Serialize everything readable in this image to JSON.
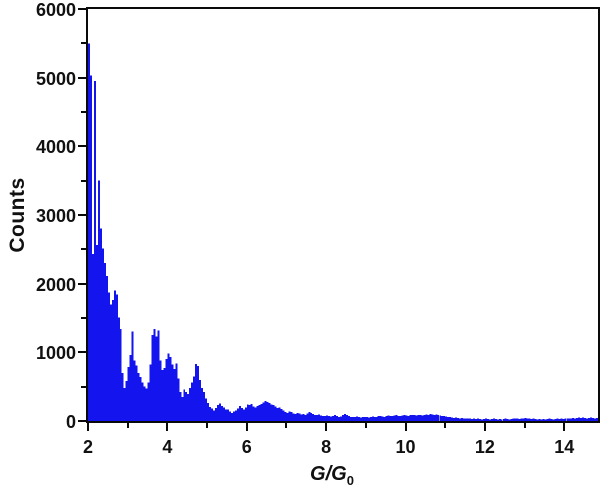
{
  "figure": {
    "background_color": "#ffffff",
    "bar_color": "#1414ee",
    "axis_color": "#0a0a0a",
    "text_color": "#111111"
  },
  "chart_data": {
    "type": "bar",
    "subtype": "histogram",
    "title": "",
    "xlabel": "G/G0",
    "xlabel_main": "G/G",
    "xlabel_sub": "0",
    "ylabel": "Counts",
    "xlim": [
      2,
      14.85
    ],
    "ylim": [
      0,
      6000
    ],
    "grid": false,
    "legend_position": "none",
    "x_major_ticks": [
      2,
      4,
      6,
      8,
      10,
      12,
      14
    ],
    "x_major_tick_labels": [
      "2",
      "4",
      "6",
      "8",
      "10",
      "12",
      "14"
    ],
    "x_minor_ticks": [
      3,
      5,
      7,
      9,
      11,
      13
    ],
    "y_major_ticks": [
      0,
      1000,
      2000,
      3000,
      4000,
      5000,
      6000
    ],
    "y_major_tick_labels": [
      "0",
      "1000",
      "2000",
      "3000",
      "4000",
      "5000",
      "6000"
    ],
    "y_minor_ticks": [
      500,
      1500,
      2500,
      3500,
      4500,
      5500
    ],
    "bin_start": 2.0,
    "bin_width": 0.05,
    "counts": [
      5500,
      5030,
      2430,
      4950,
      2560,
      3500,
      2800,
      2510,
      2300,
      2110,
      1870,
      1700,
      1760,
      1900,
      1840,
      1510,
      1340,
      700,
      480,
      580,
      790,
      960,
      1300,
      880,
      810,
      700,
      640,
      560,
      500,
      470,
      560,
      820,
      1250,
      1340,
      1230,
      1320,
      880,
      740,
      770,
      900,
      980,
      930,
      820,
      760,
      840,
      620,
      420,
      350,
      460,
      420,
      390,
      480,
      560,
      650,
      830,
      800,
      600,
      480,
      420,
      330,
      260,
      205,
      180,
      150,
      190,
      235,
      255,
      220,
      200,
      170,
      165,
      140,
      120,
      135,
      150,
      185,
      215,
      190,
      170,
      200,
      240,
      230,
      245,
      210,
      200,
      215,
      230,
      250,
      270,
      290,
      280,
      260,
      240,
      230,
      210,
      190,
      200,
      175,
      150,
      130,
      120,
      140,
      130,
      110,
      100,
      120,
      110,
      95,
      100,
      90,
      110,
      130,
      120,
      100,
      90,
      85,
      95,
      80,
      70,
      75,
      80,
      70,
      65,
      75,
      85,
      70,
      60,
      65,
      90,
      100,
      85,
      70,
      60,
      55,
      60,
      65,
      55,
      50,
      55,
      60,
      55,
      50,
      60,
      65,
      60,
      55,
      70,
      75,
      65,
      60,
      70,
      80,
      75,
      70,
      80,
      85,
      75,
      70,
      80,
      85,
      80,
      75,
      85,
      90,
      85,
      80,
      85,
      90,
      80,
      85,
      95,
      90,
      100,
      95,
      90,
      95,
      85,
      80,
      75,
      70,
      65,
      60,
      55,
      50,
      45,
      50,
      45,
      40,
      45,
      40,
      35,
      40,
      35,
      30,
      35,
      30,
      35,
      30,
      25,
      30,
      35,
      30,
      25,
      30,
      35,
      30,
      25,
      30,
      25,
      30,
      35,
      30,
      25,
      30,
      35,
      40,
      35,
      30,
      35,
      40,
      45,
      40,
      35,
      30,
      35,
      30,
      25,
      30,
      25,
      30,
      25,
      30,
      35,
      30,
      25,
      30,
      35,
      30,
      35,
      30,
      35,
      40,
      35,
      40,
      45,
      40,
      45,
      50,
      45,
      50,
      45,
      40,
      45,
      50,
      45,
      40,
      45
    ]
  }
}
